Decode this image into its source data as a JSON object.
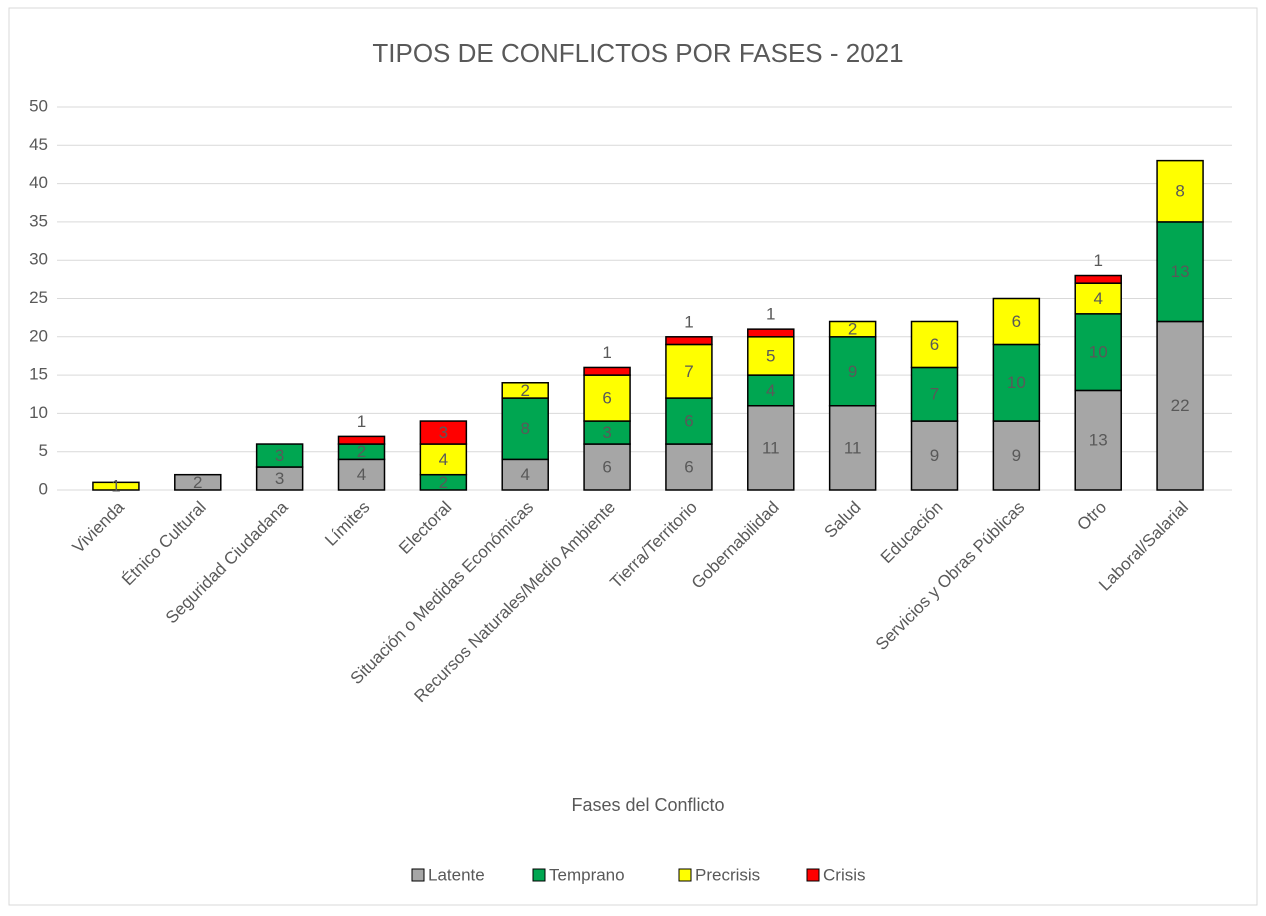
{
  "chart_data": {
    "type": "stacked_bar",
    "title": "TIPOS DE CONFLICTOS POR FASES - 2021",
    "x_label": "Fases del Conflicto",
    "categories": [
      "Vivienda",
      "Étnico Cultural",
      "Seguridad Ciudadana",
      "Límites",
      "Electoral",
      "Situación o Medidas Económicas",
      "Recursos Naturales/Medio Ambiente",
      "Tierra/Territorio",
      "Gobernabilidad",
      "Salud",
      "Educación",
      "Servicios y Obras Públicas",
      "Otro",
      "Laboral/Salarial"
    ],
    "series": [
      {
        "name": "Latente",
        "color": "#a6a6a6",
        "values": [
          null,
          2,
          3,
          4,
          null,
          4,
          6,
          6,
          11,
          11,
          9,
          9,
          13,
          22
        ]
      },
      {
        "name": "Temprano",
        "color": "#00a651",
        "values": [
          null,
          null,
          3,
          2,
          2,
          8,
          3,
          6,
          4,
          9,
          7,
          10,
          10,
          13
        ]
      },
      {
        "name": "Precrisis",
        "color": "#ffff00",
        "values": [
          1,
          null,
          null,
          null,
          4,
          2,
          6,
          7,
          5,
          2,
          6,
          6,
          4,
          8
        ]
      },
      {
        "name": "Crisis",
        "color": "#ff0000",
        "values": [
          null,
          null,
          null,
          1,
          3,
          null,
          1,
          1,
          1,
          null,
          null,
          null,
          1,
          null
        ]
      }
    ],
    "ylim": [
      0,
      50
    ],
    "yticks": [
      0,
      5,
      10,
      15,
      20,
      25,
      30,
      35,
      40,
      45,
      50
    ],
    "grid": true,
    "legend": "bottom"
  }
}
